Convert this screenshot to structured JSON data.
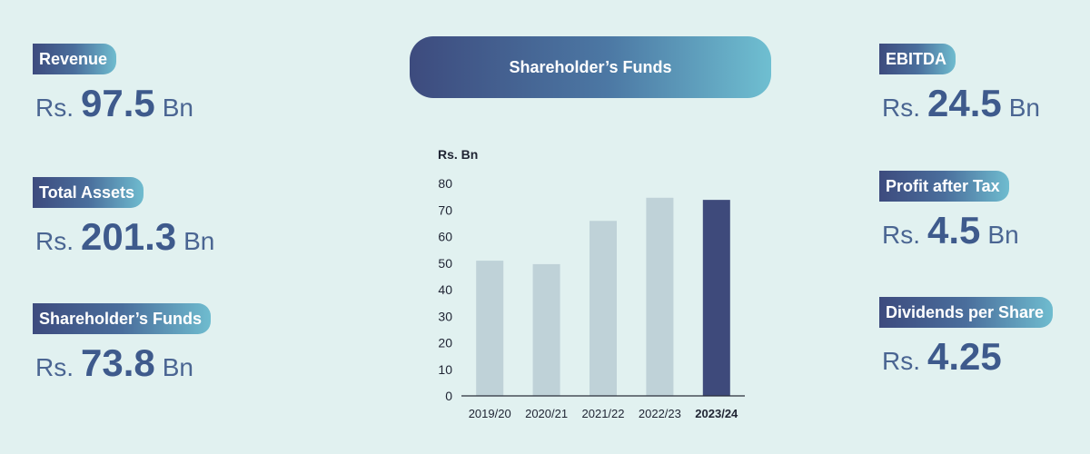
{
  "metrics_left": [
    {
      "label": "Revenue",
      "prefix": "Rs.",
      "value": "97.5",
      "unit": "Bn"
    },
    {
      "label": "Total Assets",
      "prefix": "Rs.",
      "value": "201.3",
      "unit": "Bn"
    },
    {
      "label": "Shareholder’s Funds",
      "prefix": "Rs.",
      "value": "73.8",
      "unit": "Bn"
    }
  ],
  "metrics_right": [
    {
      "label": "EBITDA",
      "prefix": "Rs.",
      "value": "24.5",
      "unit": "Bn"
    },
    {
      "label": "Profit after Tax",
      "prefix": "Rs.",
      "value": "4.5",
      "unit": "Bn"
    },
    {
      "label": "Dividends per Share",
      "prefix": "Rs.",
      "value": "4.25",
      "unit": ""
    }
  ],
  "colors": {
    "background": "#e1f1f0",
    "bar_previous": "#bfd2d8",
    "bar_current": "#3e4a7b",
    "value_text": "#3e5a8c",
    "label_gradient_start": "#3d4b7e",
    "label_gradient_end": "#6fbccf"
  },
  "chart_data": {
    "type": "bar",
    "title": "Shareholder’s Funds",
    "ylabel": "Rs. Bn",
    "xlabel": "",
    "categories": [
      "2019/20",
      "2020/21",
      "2021/22",
      "2022/23",
      "2023/24"
    ],
    "values": [
      50.9,
      49.6,
      65.9,
      74.6,
      73.8
    ],
    "highlight": "2023/24",
    "ylim": [
      0,
      80
    ],
    "yticks": [
      0,
      10,
      20,
      30,
      40,
      50,
      60,
      70,
      80
    ],
    "grid": false,
    "legend": "none"
  }
}
